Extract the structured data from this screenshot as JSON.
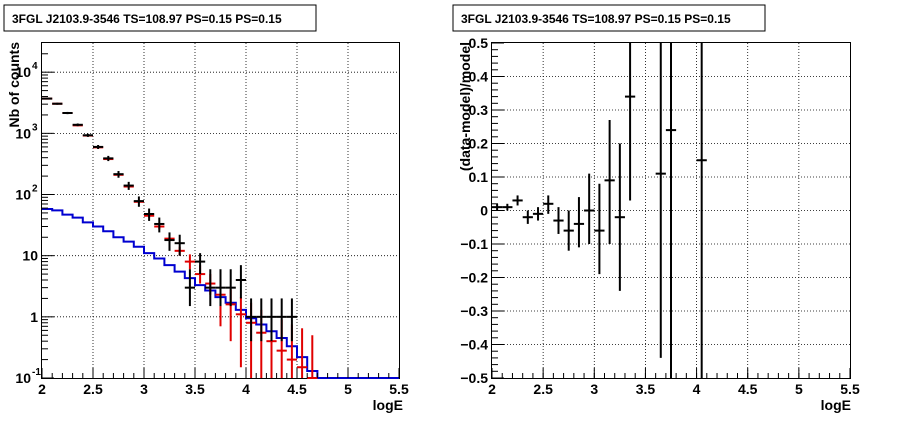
{
  "chart_data": [
    {
      "type": "scatter",
      "title": "3FGL J2103.9-3546 TS=108.97 PS=0.15 PS=0.15",
      "xlabel": "logE",
      "ylabel": "Nb of counts",
      "xlim": [
        2,
        5.5
      ],
      "ylim": [
        0.1,
        30000
      ],
      "yscale": "log",
      "grid": true,
      "x_ticks": [
        "2",
        "2.5",
        "3",
        "3.5",
        "4",
        "4.5",
        "5",
        "5.5"
      ],
      "y_ticks": [
        {
          "value": 0.1,
          "label": "10",
          "exp": "-1"
        },
        {
          "value": 1,
          "label": "1",
          "exp": ""
        },
        {
          "value": 10,
          "label": "10",
          "exp": ""
        },
        {
          "value": 100,
          "label": "10",
          "exp": "2"
        },
        {
          "value": 1000,
          "label": "10",
          "exp": "3"
        },
        {
          "value": 10000,
          "label": "10",
          "exp": "4"
        }
      ],
      "colors": {
        "data": "#000000",
        "model": "#e00000",
        "background": "#0000d0"
      },
      "bin_width": 0.1,
      "series": [
        {
          "role": "data",
          "points": [
            {
              "x": 2.05,
              "y": 3700,
              "lo": 3580,
              "hi": 3820
            },
            {
              "x": 2.15,
              "y": 3050,
              "lo": 2940,
              "hi": 3160
            },
            {
              "x": 2.25,
              "y": 2150,
              "lo": 2060,
              "hi": 2240
            },
            {
              "x": 2.35,
              "y": 1380,
              "lo": 1310,
              "hi": 1450
            },
            {
              "x": 2.45,
              "y": 930,
              "lo": 875,
              "hi": 985
            },
            {
              "x": 2.55,
              "y": 600,
              "lo": 555,
              "hi": 645
            },
            {
              "x": 2.65,
              "y": 390,
              "lo": 352,
              "hi": 428
            },
            {
              "x": 2.75,
              "y": 215,
              "lo": 188,
              "hi": 242
            },
            {
              "x": 2.85,
              "y": 140,
              "lo": 119,
              "hi": 161
            },
            {
              "x": 2.95,
              "y": 78,
              "lo": 63,
              "hi": 93
            },
            {
              "x": 3.05,
              "y": 48,
              "lo": 37,
              "hi": 59
            },
            {
              "x": 3.15,
              "y": 33,
              "lo": 24,
              "hi": 42
            },
            {
              "x": 3.25,
              "y": 18,
              "lo": 12,
              "hi": 24
            },
            {
              "x": 3.35,
              "y": 16,
              "lo": 10,
              "hi": 22
            },
            {
              "x": 3.45,
              "y": 3,
              "lo": 1.5,
              "hi": 6
            },
            {
              "x": 3.55,
              "y": 8,
              "lo": 5,
              "hi": 11
            },
            {
              "x": 3.65,
              "y": 3,
              "lo": 1.5,
              "hi": 6
            },
            {
              "x": 3.75,
              "y": 3,
              "lo": 1.5,
              "hi": 6
            },
            {
              "x": 3.85,
              "y": 3,
              "lo": 1.5,
              "hi": 6
            },
            {
              "x": 3.95,
              "y": 4,
              "lo": 2,
              "hi": 7
            },
            {
              "x": 4.05,
              "y": 1,
              "lo": 0.4,
              "hi": 2
            },
            {
              "x": 4.15,
              "y": 1,
              "lo": 0.4,
              "hi": 2
            },
            {
              "x": 4.25,
              "y": 1,
              "lo": 0.4,
              "hi": 2
            },
            {
              "x": 4.35,
              "y": 1,
              "lo": 0.4,
              "hi": 2
            },
            {
              "x": 4.45,
              "y": 1,
              "lo": 0.4,
              "hi": 2
            }
          ]
        },
        {
          "role": "model",
          "points": [
            {
              "x": 2.05,
              "y": 3700,
              "lo": 3700,
              "hi": 3700
            },
            {
              "x": 2.15,
              "y": 3050,
              "lo": 3050,
              "hi": 3050
            },
            {
              "x": 2.25,
              "y": 2150,
              "lo": 2150,
              "hi": 2150
            },
            {
              "x": 2.35,
              "y": 1350,
              "lo": 1350,
              "hi": 1350
            },
            {
              "x": 2.45,
              "y": 920,
              "lo": 920,
              "hi": 920
            },
            {
              "x": 2.55,
              "y": 590,
              "lo": 590,
              "hi": 590
            },
            {
              "x": 2.65,
              "y": 380,
              "lo": 380,
              "hi": 380
            },
            {
              "x": 2.75,
              "y": 210,
              "lo": 210,
              "hi": 210
            },
            {
              "x": 2.85,
              "y": 135,
              "lo": 135,
              "hi": 135
            },
            {
              "x": 2.95,
              "y": 76,
              "lo": 72,
              "hi": 80
            },
            {
              "x": 3.05,
              "y": 45,
              "lo": 42,
              "hi": 48
            },
            {
              "x": 3.15,
              "y": 30,
              "lo": 27,
              "hi": 33
            },
            {
              "x": 3.25,
              "y": 19,
              "lo": 16,
              "hi": 22
            },
            {
              "x": 3.35,
              "y": 12,
              "lo": 10,
              "hi": 14
            },
            {
              "x": 3.45,
              "y": 8,
              "lo": 6,
              "hi": 10.5
            },
            {
              "x": 3.55,
              "y": 5,
              "lo": 3.5,
              "hi": 7
            },
            {
              "x": 3.65,
              "y": 3.5,
              "lo": 2.3,
              "hi": 5
            },
            {
              "x": 3.75,
              "y": 2.3,
              "lo": 0.7,
              "hi": 3.8
            },
            {
              "x": 3.85,
              "y": 1.6,
              "lo": 0.4,
              "hi": 2.8
            },
            {
              "x": 3.95,
              "y": 1.1,
              "lo": 0.15,
              "hi": 2.1
            },
            {
              "x": 4.05,
              "y": 0.8,
              "lo": 0.1,
              "hi": 1.7
            },
            {
              "x": 4.15,
              "y": 0.55,
              "lo": 0.1,
              "hi": 1.3
            },
            {
              "x": 4.25,
              "y": 0.4,
              "lo": 0.1,
              "hi": 1.1
            },
            {
              "x": 4.35,
              "y": 0.28,
              "lo": 0.1,
              "hi": 0.9
            },
            {
              "x": 4.45,
              "y": 0.2,
              "lo": 0.1,
              "hi": 0.75
            },
            {
              "x": 4.55,
              "y": 0.15,
              "lo": 0.1,
              "hi": 0.65
            },
            {
              "x": 4.65,
              "y": 0.1,
              "lo": 0.1,
              "hi": 0.5
            }
          ]
        },
        {
          "role": "background",
          "steps": [
            {
              "x0": 2.0,
              "x1": 2.1,
              "y": 58
            },
            {
              "x0": 2.1,
              "x1": 2.2,
              "y": 55
            },
            {
              "x0": 2.2,
              "x1": 2.3,
              "y": 47
            },
            {
              "x0": 2.3,
              "x1": 2.4,
              "y": 42
            },
            {
              "x0": 2.4,
              "x1": 2.5,
              "y": 35
            },
            {
              "x0": 2.5,
              "x1": 2.6,
              "y": 30
            },
            {
              "x0": 2.6,
              "x1": 2.7,
              "y": 25
            },
            {
              "x0": 2.7,
              "x1": 2.8,
              "y": 20
            },
            {
              "x0": 2.8,
              "x1": 2.9,
              "y": 17
            },
            {
              "x0": 2.9,
              "x1": 3.0,
              "y": 14
            },
            {
              "x0": 3.0,
              "x1": 3.1,
              "y": 11
            },
            {
              "x0": 3.1,
              "x1": 3.2,
              "y": 9
            },
            {
              "x0": 3.2,
              "x1": 3.3,
              "y": 7
            },
            {
              "x0": 3.3,
              "x1": 3.4,
              "y": 5.5
            },
            {
              "x0": 3.4,
              "x1": 3.5,
              "y": 4.3
            },
            {
              "x0": 3.5,
              "x1": 3.6,
              "y": 3.3
            },
            {
              "x0": 3.6,
              "x1": 3.7,
              "y": 2.7
            },
            {
              "x0": 3.7,
              "x1": 3.8,
              "y": 2.1
            },
            {
              "x0": 3.8,
              "x1": 3.9,
              "y": 1.7
            },
            {
              "x0": 3.9,
              "x1": 4.0,
              "y": 1.3
            },
            {
              "x0": 4.0,
              "x1": 4.1,
              "y": 0.95
            },
            {
              "x0": 4.1,
              "x1": 4.2,
              "y": 0.75
            },
            {
              "x0": 4.2,
              "x1": 4.3,
              "y": 0.58
            },
            {
              "x0": 4.3,
              "x1": 4.4,
              "y": 0.45
            },
            {
              "x0": 4.4,
              "x1": 4.5,
              "y": 0.33
            },
            {
              "x0": 4.5,
              "x1": 4.6,
              "y": 0.22
            },
            {
              "x0": 4.6,
              "x1": 4.7,
              "y": 0.13
            },
            {
              "x0": 4.7,
              "x1": 5.5,
              "y": 0.1
            }
          ]
        }
      ]
    },
    {
      "type": "scatter",
      "title": "3FGL J2103.9-3546 TS=108.97 PS=0.15 PS=0.15",
      "xlabel": "logE",
      "ylabel": "(data-model)/model",
      "xlim": [
        2,
        5.5
      ],
      "ylim": [
        -0.5,
        0.5
      ],
      "yscale": "linear",
      "grid": true,
      "x_ticks": [
        "2",
        "2.5",
        "3",
        "3.5",
        "4",
        "4.5",
        "5",
        "5.5"
      ],
      "y_ticks": [
        "−0.5",
        "−0.4",
        "−0.3",
        "−0.2",
        "−0.1",
        "0",
        "0.1",
        "0.2",
        "0.3",
        "0.4",
        "0.5"
      ],
      "colors": {
        "data": "#000000"
      },
      "bin_width": 0.1,
      "series": [
        {
          "role": "residual",
          "points": [
            {
              "x": 2.05,
              "y": 0.01,
              "lo": 0.0,
              "hi": 0.02
            },
            {
              "x": 2.15,
              "y": 0.01,
              "lo": 0.0,
              "hi": 0.02
            },
            {
              "x": 2.25,
              "y": 0.03,
              "lo": 0.015,
              "hi": 0.045
            },
            {
              "x": 2.35,
              "y": -0.02,
              "lo": -0.04,
              "hi": 0.0
            },
            {
              "x": 2.45,
              "y": -0.01,
              "lo": -0.03,
              "hi": 0.01
            },
            {
              "x": 2.55,
              "y": 0.02,
              "lo": -0.01,
              "hi": 0.045
            },
            {
              "x": 2.65,
              "y": -0.03,
              "lo": -0.07,
              "hi": 0.01
            },
            {
              "x": 2.75,
              "y": -0.06,
              "lo": -0.12,
              "hi": 0.0
            },
            {
              "x": 2.85,
              "y": -0.04,
              "lo": -0.11,
              "hi": 0.04
            },
            {
              "x": 2.95,
              "y": 0.0,
              "lo": -0.1,
              "hi": 0.11
            },
            {
              "x": 3.05,
              "y": -0.06,
              "lo": -0.19,
              "hi": 0.08
            },
            {
              "x": 3.15,
              "y": 0.09,
              "lo": -0.1,
              "hi": 0.27
            },
            {
              "x": 3.25,
              "y": -0.02,
              "lo": -0.24,
              "hi": 0.2
            },
            {
              "x": 3.35,
              "y": 0.34,
              "lo": 0.03,
              "hi": 0.5
            },
            {
              "x": 3.65,
              "y": 0.11,
              "lo": -0.44,
              "hi": 0.5
            },
            {
              "x": 3.75,
              "y": 0.24,
              "lo": -0.5,
              "hi": 0.5
            },
            {
              "x": 4.05,
              "y": 0.15,
              "lo": -0.5,
              "hi": 0.5
            }
          ]
        }
      ]
    }
  ]
}
